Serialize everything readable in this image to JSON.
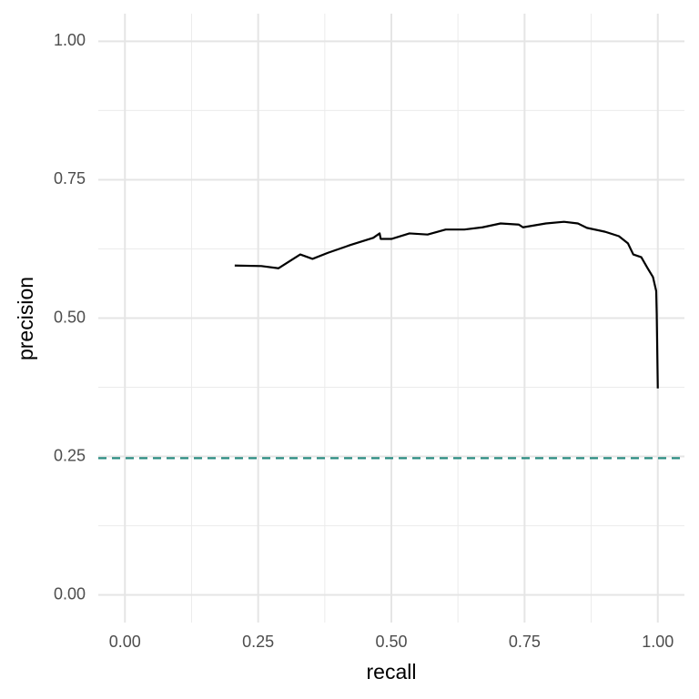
{
  "chart_data": {
    "type": "line",
    "x_label": "recall",
    "y_label": "precision",
    "xlim": [
      -0.05,
      1.05
    ],
    "ylim": [
      -0.05,
      1.05
    ],
    "xticks": [
      {
        "value": 0,
        "label": "0.00"
      },
      {
        "value": 0.25,
        "label": "0.25"
      },
      {
        "value": 0.5,
        "label": "0.50"
      },
      {
        "value": 0.75,
        "label": "0.75"
      },
      {
        "value": 1,
        "label": "1.00"
      }
    ],
    "yticks": [
      {
        "value": 0,
        "label": "0.00"
      },
      {
        "value": 0.25,
        "label": "0.25"
      },
      {
        "value": 0.5,
        "label": "0.50"
      },
      {
        "value": 0.75,
        "label": "0.75"
      },
      {
        "value": 1,
        "label": "1.00"
      }
    ],
    "x_minor_ticks": [
      0.125,
      0.375,
      0.625,
      0.875
    ],
    "y_minor_ticks": [
      0.125,
      0.375,
      0.625,
      0.875
    ],
    "grid": true,
    "hline": {
      "value": 0.247,
      "color": "#2a8c82",
      "dashed": true
    },
    "series": [
      {
        "color": "#000000",
        "x": [
          0.206,
          0.256,
          0.288,
          0.329,
          0.352,
          0.381,
          0.423,
          0.466,
          0.478,
          0.48,
          0.5,
          0.534,
          0.568,
          0.602,
          0.637,
          0.671,
          0.705,
          0.739,
          0.747,
          0.79,
          0.824,
          0.85,
          0.867,
          0.901,
          0.927,
          0.944,
          0.954,
          0.969,
          0.981,
          0.991,
          0.997,
          0.998,
          1.0
        ],
        "values": [
          0.595,
          0.594,
          0.59,
          0.615,
          0.607,
          0.618,
          0.632,
          0.645,
          0.653,
          0.643,
          0.643,
          0.653,
          0.651,
          0.66,
          0.66,
          0.664,
          0.671,
          0.669,
          0.664,
          0.671,
          0.674,
          0.671,
          0.663,
          0.656,
          0.648,
          0.635,
          0.615,
          0.61,
          0.59,
          0.574,
          0.549,
          0.508,
          0.373
        ]
      }
    ]
  }
}
